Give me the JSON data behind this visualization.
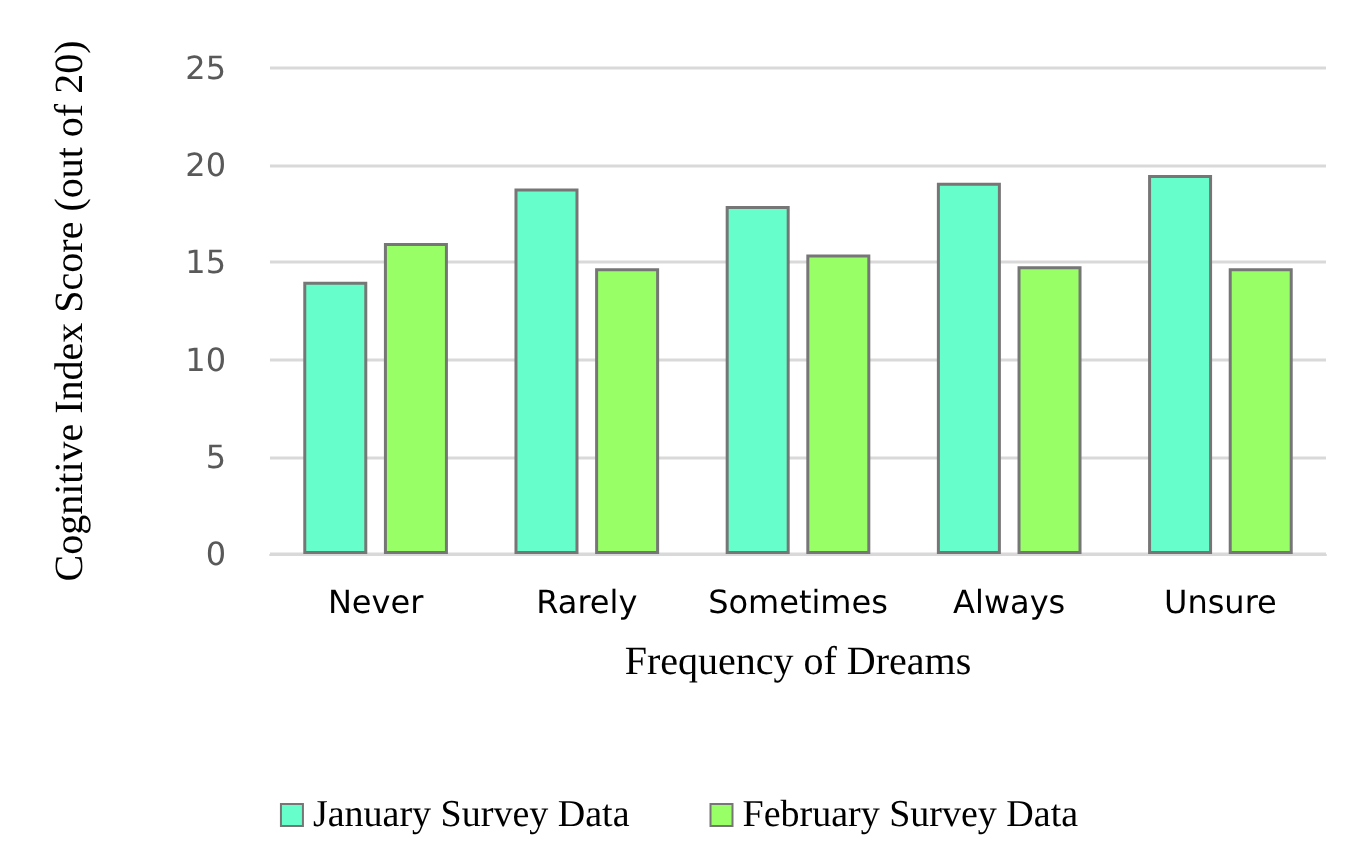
{
  "chart_data": {
    "type": "bar",
    "xlabel": "Frequency of Dreams",
    "ylabel": "Cognitive Index Score (out of 20)",
    "categories": [
      "Never",
      "Rarely",
      "Sometimes",
      "Always",
      "Unsure"
    ],
    "series": [
      {
        "name": "January Survey Data",
        "color": "#66ffcc",
        "values": [
          14.0,
          18.8,
          17.9,
          19.1,
          19.5
        ]
      },
      {
        "name": "February Survey Data",
        "color": "#99ff66",
        "values": [
          16.0,
          14.7,
          15.4,
          14.8,
          14.7
        ]
      }
    ],
    "ylim": [
      0,
      25
    ],
    "yticks": [
      0,
      5,
      10,
      15,
      20,
      25
    ],
    "grid": "y",
    "legend": "bottom"
  }
}
